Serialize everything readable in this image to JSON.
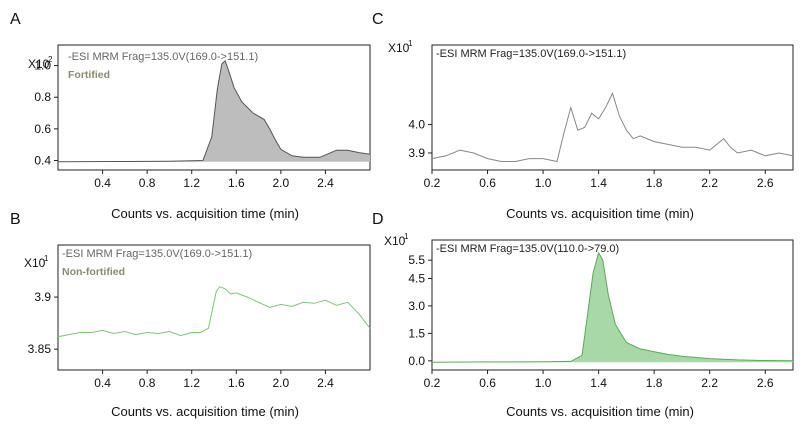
{
  "chart_data": [
    {
      "panel": "A",
      "type": "area",
      "annotation": "-ESI MRM Frag=135.0V(169.0->151.1)",
      "subtitle": "Fortified",
      "multiplier_base": "X10",
      "multiplier_exp": "2",
      "xlabel": "Counts vs. acquisition time (min)",
      "xlim": [
        0.0,
        2.8
      ],
      "ylim": [
        0.34,
        1.13
      ],
      "xticks": [
        "0.4",
        "0.8",
        "1.2",
        "1.6",
        "2.0",
        "2.4"
      ],
      "yticks": [
        "0.4",
        "0.6",
        "0.8",
        "1.0"
      ],
      "fill_color": "#bdbdbd",
      "line_color": "#555555",
      "x": [
        0.0,
        0.5,
        1.0,
        1.3,
        1.38,
        1.43,
        1.47,
        1.5,
        1.53,
        1.58,
        1.65,
        1.75,
        1.85,
        1.9,
        1.95,
        2.0,
        2.1,
        2.2,
        2.3,
        2.35,
        2.45,
        2.5,
        2.6,
        2.7,
        2.8
      ],
      "y": [
        0.392,
        0.394,
        0.395,
        0.4,
        0.55,
        0.85,
        1.01,
        1.03,
        0.97,
        0.86,
        0.77,
        0.7,
        0.66,
        0.6,
        0.53,
        0.47,
        0.43,
        0.42,
        0.42,
        0.42,
        0.45,
        0.465,
        0.465,
        0.45,
        0.44
      ]
    },
    {
      "panel": "B",
      "type": "line",
      "annotation": "-ESI MRM Frag=135.0V(169.0->151.1)",
      "subtitle": "Non-fortified",
      "multiplier_base": "X10",
      "multiplier_exp": "1",
      "xlabel": "Counts vs. acquisition time (min)",
      "xlim": [
        0.0,
        2.8
      ],
      "ylim": [
        3.83,
        3.95
      ],
      "xticks": [
        "0.4",
        "0.8",
        "1.2",
        "1.6",
        "2.0",
        "2.4"
      ],
      "yticks": [
        "3.85",
        "3.9"
      ],
      "line_color": "#7ec47e",
      "x": [
        0.0,
        0.1,
        0.2,
        0.3,
        0.4,
        0.5,
        0.6,
        0.7,
        0.8,
        0.9,
        1.0,
        1.1,
        1.2,
        1.28,
        1.35,
        1.42,
        1.45,
        1.5,
        1.55,
        1.6,
        1.7,
        1.8,
        1.9,
        2.0,
        2.1,
        2.2,
        2.3,
        2.4,
        2.5,
        2.6,
        2.7,
        2.8
      ],
      "y": [
        3.862,
        3.864,
        3.866,
        3.866,
        3.868,
        3.865,
        3.867,
        3.864,
        3.866,
        3.865,
        3.867,
        3.863,
        3.866,
        3.866,
        3.87,
        3.905,
        3.91,
        3.908,
        3.903,
        3.904,
        3.9,
        3.895,
        3.89,
        3.893,
        3.891,
        3.895,
        3.894,
        3.897,
        3.892,
        3.895,
        3.884,
        3.87
      ]
    },
    {
      "panel": "C",
      "type": "line",
      "annotation": "-ESI MRM Frag=135.0V(169.0->151.1)",
      "multiplier_base": "X10",
      "multiplier_exp": "1",
      "xlabel": "Counts vs. acquisition time (min)",
      "xlim": [
        0.2,
        2.8
      ],
      "ylim": [
        3.84,
        4.28
      ],
      "xticks": [
        "0.2",
        "0.6",
        "1.0",
        "1.4",
        "1.8",
        "2.2",
        "2.6"
      ],
      "yticks": [
        "3.9",
        "4.0"
      ],
      "line_color": "#888888",
      "x": [
        0.2,
        0.3,
        0.4,
        0.5,
        0.6,
        0.7,
        0.8,
        0.9,
        1.0,
        1.1,
        1.15,
        1.2,
        1.25,
        1.3,
        1.35,
        1.4,
        1.45,
        1.5,
        1.55,
        1.6,
        1.65,
        1.7,
        1.8,
        1.9,
        2.0,
        2.1,
        2.2,
        2.3,
        2.35,
        2.4,
        2.5,
        2.6,
        2.7,
        2.8
      ],
      "y": [
        3.88,
        3.89,
        3.91,
        3.9,
        3.88,
        3.87,
        3.87,
        3.88,
        3.88,
        3.87,
        3.97,
        4.06,
        3.98,
        3.99,
        4.04,
        4.02,
        4.06,
        4.11,
        4.03,
        3.98,
        3.95,
        3.96,
        3.94,
        3.93,
        3.92,
        3.92,
        3.91,
        3.95,
        3.92,
        3.9,
        3.91,
        3.89,
        3.9,
        3.89
      ]
    },
    {
      "panel": "D",
      "type": "area",
      "annotation": "-ESI MRM Frag=135.0V(110.0->79.0)",
      "multiplier_base": "X10",
      "multiplier_exp": "1",
      "xlabel": "Counts vs. acquisition time (min)",
      "xlim": [
        0.2,
        2.8
      ],
      "ylim": [
        -0.5,
        6.6
      ],
      "xticks": [
        "0.2",
        "0.6",
        "1.0",
        "1.4",
        "1.8",
        "2.2",
        "2.6"
      ],
      "yticks": [
        "0.0",
        "1.5",
        "3.0",
        "4.5",
        "5.5"
      ],
      "fill_color": "#a8d8a8",
      "line_color": "#5aaa5a",
      "x": [
        0.2,
        0.6,
        1.0,
        1.2,
        1.28,
        1.32,
        1.36,
        1.4,
        1.43,
        1.47,
        1.52,
        1.6,
        1.7,
        1.8,
        1.9,
        2.0,
        2.2,
        2.4,
        2.6,
        2.8
      ],
      "y": [
        -0.08,
        -0.06,
        -0.05,
        -0.03,
        0.3,
        2.5,
        4.8,
        5.9,
        5.5,
        3.6,
        2.0,
        1.0,
        0.65,
        0.5,
        0.35,
        0.25,
        0.12,
        0.05,
        0.02,
        0.0
      ]
    }
  ],
  "panel_labels": [
    "A",
    "B",
    "C",
    "D"
  ]
}
